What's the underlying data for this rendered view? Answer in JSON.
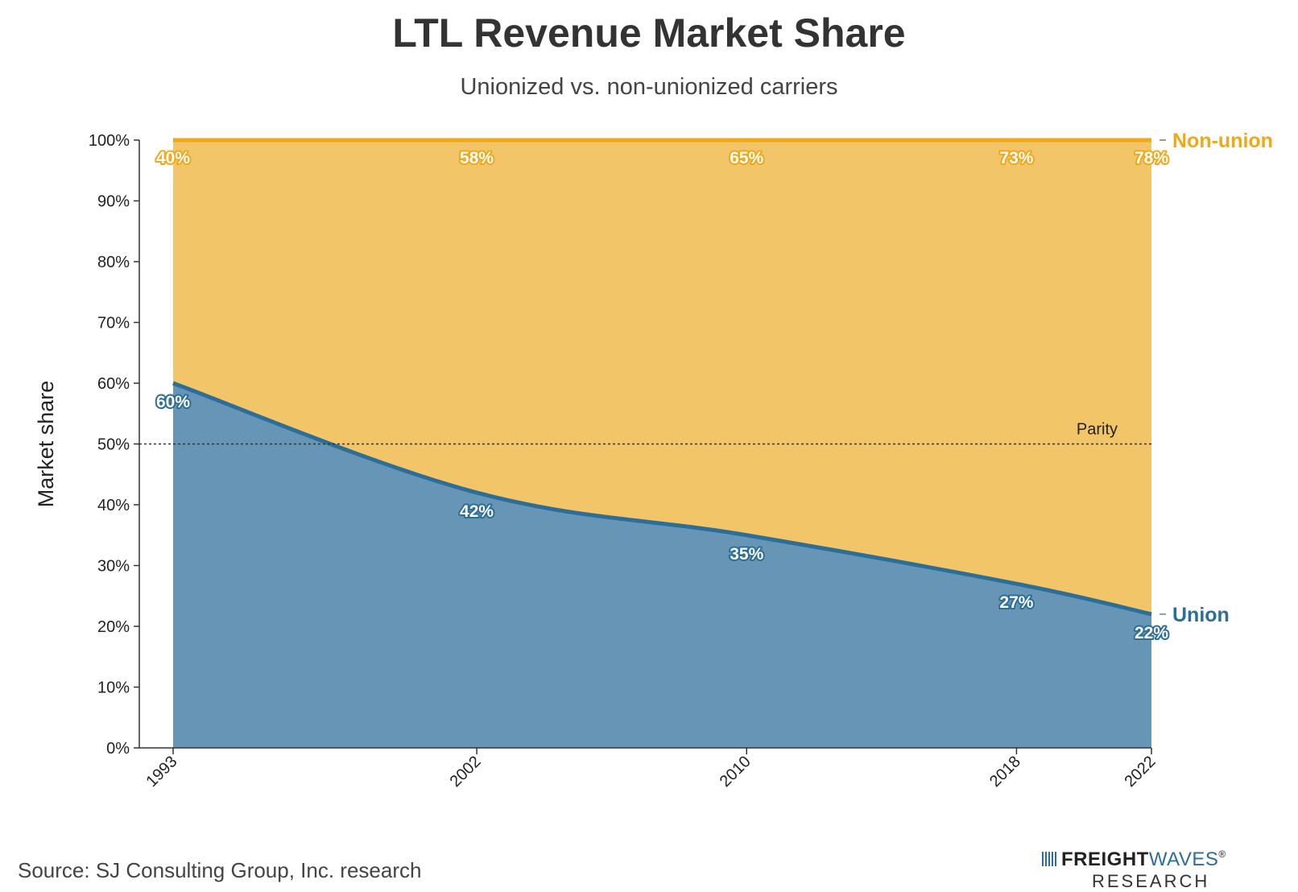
{
  "chart_data": {
    "type": "area",
    "title": "LTL Revenue Market Share",
    "subtitle": "Unionized vs. non-unionized carriers",
    "xlabel": "",
    "ylabel": "Market share",
    "x": [
      1993,
      2002,
      2010,
      2018,
      2022
    ],
    "x_tick_labels": [
      "1993",
      "2002",
      "2010",
      "2018",
      "2022"
    ],
    "ylim": [
      0,
      100
    ],
    "y_ticks": [
      0,
      10,
      20,
      30,
      40,
      50,
      60,
      70,
      80,
      90,
      100
    ],
    "y_tick_labels": [
      "0%",
      "10%",
      "20%",
      "30%",
      "40%",
      "50%",
      "60%",
      "70%",
      "80%",
      "90%",
      "100%"
    ],
    "stacked": true,
    "series": [
      {
        "name": "Union",
        "values": [
          60,
          42,
          35,
          27,
          22
        ],
        "labels": [
          "60%",
          "42%",
          "35%",
          "27%",
          "22%"
        ],
        "fill_color": "#6795b5",
        "line_color": "#2b6e9a"
      },
      {
        "name": "Non-union",
        "values": [
          40,
          58,
          65,
          73,
          78
        ],
        "labels": [
          "40%",
          "58%",
          "65%",
          "73%",
          "78%"
        ],
        "fill_color": "#f1c568",
        "line_color": "#f0a818"
      }
    ],
    "reference_line": {
      "value": 50,
      "label": "Parity"
    },
    "legend": "right-end labels",
    "grid": false
  },
  "source": "Source: SJ Consulting Group, Inc. research",
  "logo": {
    "word1": "FREIGHT",
    "word2": "WAVES",
    "reg": "®",
    "line2": "RESEARCH"
  }
}
